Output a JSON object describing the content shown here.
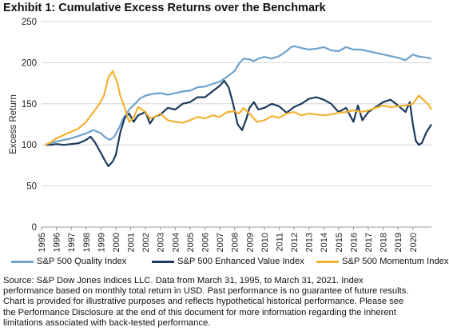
{
  "title": "Exhibit 1: Cumulative Excess Returns over the Benchmark",
  "legend": [
    "S&P 500 Quality Index",
    "S&P 500 Enhanced Value Index",
    "S&P 500 Momentum Index"
  ],
  "source_lines": [
    "Source: S&P Dow Jones Indices LLC.  Data from March 31, 1995, to March 31, 2021.  Index",
    "performance based on monthly total return in USD.  Past performance is no guarantee of future results.",
    "Chart is provided for illustrative purposes and reflects hypothetical historical performance.  Please see",
    "the Performance Disclosure at the end of this document for more information regarding the inherent",
    "limitations associated with back-tested performance."
  ],
  "chart_data": {
    "type": "line",
    "ylabel": "Excess Return",
    "xlabel": "",
    "ylim": [
      0,
      250
    ],
    "yticks": [
      0,
      50,
      100,
      150,
      200,
      250
    ],
    "xlim": [
      1995,
      2021.25
    ],
    "xticks": [
      "1995",
      "1996",
      "1997",
      "1998",
      "1999",
      "2000",
      "2001",
      "2002",
      "2003",
      "2004",
      "2005",
      "2006",
      "2007",
      "2008",
      "2009",
      "2010",
      "2011",
      "2012",
      "2013",
      "2014",
      "2015",
      "2016",
      "2017",
      "2018",
      "2019",
      "2020"
    ],
    "grid": "horizontal",
    "legend_position": "bottom",
    "series": [
      {
        "name": "S&P 500 Quality Index",
        "color": "#6fa3cc",
        "points": [
          [
            1995.25,
            100
          ],
          [
            1995.6,
            102
          ],
          [
            1996.0,
            104
          ],
          [
            1996.5,
            106
          ],
          [
            1997.0,
            108
          ],
          [
            1997.5,
            111
          ],
          [
            1998.0,
            114
          ],
          [
            1998.5,
            118
          ],
          [
            1999.0,
            114
          ],
          [
            1999.3,
            109
          ],
          [
            1999.6,
            106
          ],
          [
            1999.9,
            110
          ],
          [
            2000.2,
            120
          ],
          [
            2000.5,
            132
          ],
          [
            2000.8,
            140
          ],
          [
            2001.0,
            145
          ],
          [
            2001.3,
            150
          ],
          [
            2001.6,
            156
          ],
          [
            2002.0,
            160
          ],
          [
            2002.5,
            162
          ],
          [
            2003.0,
            163
          ],
          [
            2003.5,
            161
          ],
          [
            2004.0,
            163
          ],
          [
            2004.5,
            165
          ],
          [
            2005.0,
            166
          ],
          [
            2005.5,
            170
          ],
          [
            2006.0,
            171
          ],
          [
            2006.5,
            174
          ],
          [
            2007.0,
            177
          ],
          [
            2007.5,
            183
          ],
          [
            2008.0,
            190
          ],
          [
            2008.3,
            199
          ],
          [
            2008.6,
            205
          ],
          [
            2009.0,
            204
          ],
          [
            2009.3,
            202
          ],
          [
            2009.6,
            205
          ],
          [
            2010.0,
            207
          ],
          [
            2010.5,
            205
          ],
          [
            2011.0,
            208
          ],
          [
            2011.5,
            214
          ],
          [
            2011.8,
            219
          ],
          [
            2012.0,
            220
          ],
          [
            2012.5,
            218
          ],
          [
            2013.0,
            216
          ],
          [
            2013.5,
            217
          ],
          [
            2014.0,
            219
          ],
          [
            2014.5,
            215
          ],
          [
            2015.0,
            214
          ],
          [
            2015.5,
            219
          ],
          [
            2016.0,
            216
          ],
          [
            2016.5,
            216
          ],
          [
            2017.0,
            214
          ],
          [
            2017.5,
            212
          ],
          [
            2018.0,
            210
          ],
          [
            2018.5,
            208
          ],
          [
            2019.0,
            206
          ],
          [
            2019.5,
            203
          ],
          [
            2020.0,
            210
          ],
          [
            2020.3,
            208
          ],
          [
            2020.6,
            207
          ],
          [
            2021.0,
            206
          ],
          [
            2021.25,
            205
          ]
        ]
      },
      {
        "name": "S&P 500 Enhanced Value Index",
        "color": "#1b3a5e",
        "points": [
          [
            1995.25,
            100
          ],
          [
            1995.6,
            100
          ],
          [
            1996.0,
            101
          ],
          [
            1996.5,
            100
          ],
          [
            1997.0,
            101
          ],
          [
            1997.5,
            102
          ],
          [
            1998.0,
            106
          ],
          [
            1998.3,
            110
          ],
          [
            1998.6,
            103
          ],
          [
            1999.0,
            90
          ],
          [
            1999.3,
            80
          ],
          [
            1999.5,
            74
          ],
          [
            1999.8,
            80
          ],
          [
            2000.0,
            88
          ],
          [
            2000.3,
            115
          ],
          [
            2000.6,
            133
          ],
          [
            2000.9,
            138
          ],
          [
            2001.2,
            128
          ],
          [
            2001.5,
            136
          ],
          [
            2002.0,
            140
          ],
          [
            2002.3,
            126
          ],
          [
            2002.6,
            134
          ],
          [
            2003.0,
            137
          ],
          [
            2003.5,
            145
          ],
          [
            2004.0,
            143
          ],
          [
            2004.5,
            150
          ],
          [
            2005.0,
            152
          ],
          [
            2005.5,
            158
          ],
          [
            2006.0,
            158
          ],
          [
            2006.5,
            165
          ],
          [
            2007.0,
            172
          ],
          [
            2007.3,
            178
          ],
          [
            2007.6,
            170
          ],
          [
            2007.9,
            150
          ],
          [
            2008.2,
            125
          ],
          [
            2008.5,
            118
          ],
          [
            2008.8,
            132
          ],
          [
            2009.0,
            145
          ],
          [
            2009.3,
            152
          ],
          [
            2009.6,
            143
          ],
          [
            2010.0,
            145
          ],
          [
            2010.5,
            150
          ],
          [
            2011.0,
            147
          ],
          [
            2011.5,
            139
          ],
          [
            2012.0,
            146
          ],
          [
            2012.5,
            150
          ],
          [
            2013.0,
            156
          ],
          [
            2013.5,
            158
          ],
          [
            2014.0,
            155
          ],
          [
            2014.5,
            150
          ],
          [
            2015.0,
            140
          ],
          [
            2015.5,
            145
          ],
          [
            2016.0,
            128
          ],
          [
            2016.3,
            148
          ],
          [
            2016.6,
            130
          ],
          [
            2017.0,
            140
          ],
          [
            2017.5,
            146
          ],
          [
            2018.0,
            152
          ],
          [
            2018.5,
            155
          ],
          [
            2019.0,
            148
          ],
          [
            2019.5,
            140
          ],
          [
            2019.8,
            152
          ],
          [
            2020.0,
            125
          ],
          [
            2020.2,
            105
          ],
          [
            2020.4,
            100
          ],
          [
            2020.6,
            102
          ],
          [
            2020.9,
            115
          ],
          [
            2021.25,
            125
          ]
        ]
      },
      {
        "name": "S&P 500 Momentum Index",
        "color": "#f2b233",
        "points": [
          [
            1995.25,
            100
          ],
          [
            1995.6,
            103
          ],
          [
            1996.0,
            108
          ],
          [
            1996.5,
            112
          ],
          [
            1997.0,
            116
          ],
          [
            1997.5,
            120
          ],
          [
            1998.0,
            128
          ],
          [
            1998.5,
            140
          ],
          [
            1998.9,
            150
          ],
          [
            1999.2,
            160
          ],
          [
            1999.5,
            182
          ],
          [
            1999.8,
            190
          ],
          [
            2000.1,
            176
          ],
          [
            2000.3,
            160
          ],
          [
            2000.6,
            145
          ],
          [
            2000.9,
            128
          ],
          [
            2001.2,
            133
          ],
          [
            2001.5,
            146
          ],
          [
            2002.0,
            140
          ],
          [
            2002.3,
            132
          ],
          [
            2002.6,
            134
          ],
          [
            2003.0,
            138
          ],
          [
            2003.5,
            130
          ],
          [
            2004.0,
            128
          ],
          [
            2004.5,
            127
          ],
          [
            2005.0,
            130
          ],
          [
            2005.5,
            134
          ],
          [
            2006.0,
            132
          ],
          [
            2006.5,
            136
          ],
          [
            2007.0,
            134
          ],
          [
            2007.5,
            140
          ],
          [
            2008.0,
            141
          ],
          [
            2008.3,
            138
          ],
          [
            2008.6,
            145
          ],
          [
            2009.0,
            138
          ],
          [
            2009.5,
            128
          ],
          [
            2010.0,
            130
          ],
          [
            2010.5,
            135
          ],
          [
            2011.0,
            133
          ],
          [
            2011.5,
            138
          ],
          [
            2012.0,
            140
          ],
          [
            2012.5,
            136
          ],
          [
            2013.0,
            138
          ],
          [
            2013.5,
            137
          ],
          [
            2014.0,
            136
          ],
          [
            2014.5,
            137
          ],
          [
            2015.0,
            139
          ],
          [
            2015.5,
            140
          ],
          [
            2016.0,
            142
          ],
          [
            2016.5,
            140
          ],
          [
            2017.0,
            142
          ],
          [
            2017.5,
            145
          ],
          [
            2018.0,
            148
          ],
          [
            2018.5,
            146
          ],
          [
            2019.0,
            147
          ],
          [
            2019.5,
            148
          ],
          [
            2020.0,
            150
          ],
          [
            2020.4,
            160
          ],
          [
            2020.7,
            155
          ],
          [
            2021.0,
            150
          ],
          [
            2021.25,
            143
          ]
        ]
      }
    ]
  }
}
